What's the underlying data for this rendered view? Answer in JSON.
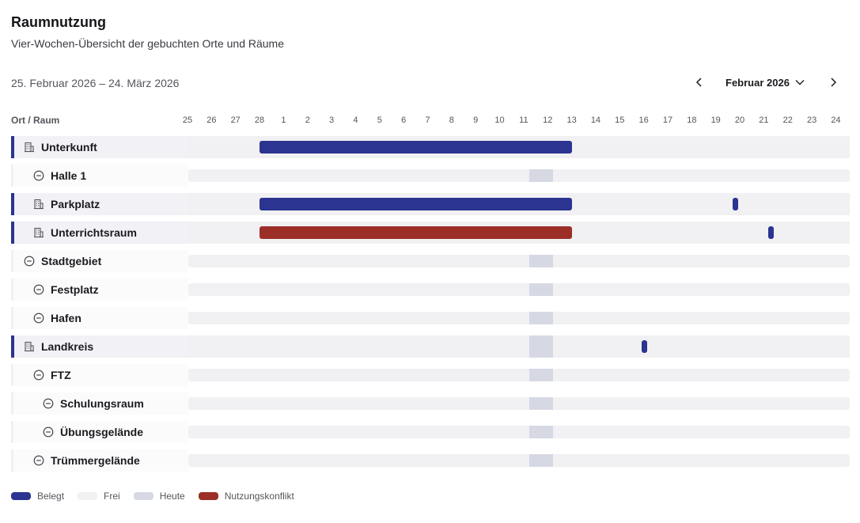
{
  "header": {
    "title": "Raumnutzung",
    "subtitle": "Vier-Wochen-Übersicht der gebuchten Orte und Räume"
  },
  "toolbar": {
    "date_range": "25. Februar 2026 – 24. März 2026",
    "month_label": "Februar 2026",
    "prev_icon": "chevron-left-icon",
    "next_icon": "chevron-right-icon",
    "month_dropdown_icon": "chevron-down-icon"
  },
  "grid": {
    "column_header": "Ort / Raum",
    "days": [
      "25",
      "26",
      "27",
      "28",
      "1",
      "2",
      "3",
      "4",
      "5",
      "6",
      "7",
      "8",
      "9",
      "10",
      "11",
      "12",
      "13",
      "14",
      "15",
      "16",
      "17",
      "18",
      "19",
      "20",
      "21",
      "22",
      "23",
      "24"
    ],
    "today_day_index": 14
  },
  "colors": {
    "belegt": "#2b3490",
    "frei": "#f1f1f3",
    "heute": "#d6d8e4",
    "konflikt": "#9b2f28"
  },
  "rows": [
    {
      "name": "Unterkunft",
      "level": 0,
      "kind": "building",
      "icon": "building-icon",
      "bookings": [
        {
          "start": 3,
          "end": 16,
          "status": "belegt"
        }
      ]
    },
    {
      "name": "Halle 1",
      "level": 1,
      "kind": "free",
      "icon": "minus-circle-icon",
      "bookings": []
    },
    {
      "name": "Parkplatz",
      "level": 1,
      "kind": "building",
      "icon": "building-icon",
      "bookings": [
        {
          "start": 3,
          "end": 16,
          "status": "belegt"
        },
        {
          "start": 22.7,
          "end": 22.9,
          "status": "belegt"
        }
      ]
    },
    {
      "name": "Unterrichtsraum",
      "level": 1,
      "kind": "building",
      "icon": "building-icon",
      "bookings": [
        {
          "start": 3,
          "end": 16,
          "status": "konflikt"
        },
        {
          "start": 24.2,
          "end": 24.4,
          "status": "belegt"
        }
      ]
    },
    {
      "name": "Stadtgebiet",
      "level": 0,
      "kind": "free",
      "icon": "minus-circle-icon",
      "bookings": []
    },
    {
      "name": "Festplatz",
      "level": 1,
      "kind": "free",
      "icon": "minus-circle-icon",
      "bookings": []
    },
    {
      "name": "Hafen",
      "level": 1,
      "kind": "free",
      "icon": "minus-circle-icon",
      "bookings": []
    },
    {
      "name": "Landkreis",
      "level": 0,
      "kind": "building",
      "icon": "building-icon",
      "bookings": [
        {
          "start": 18.9,
          "end": 19.1,
          "status": "belegt"
        }
      ]
    },
    {
      "name": "FTZ",
      "level": 1,
      "kind": "free",
      "icon": "minus-circle-icon",
      "bookings": []
    },
    {
      "name": "Schulungsraum",
      "level": 2,
      "kind": "free",
      "icon": "minus-circle-icon",
      "bookings": []
    },
    {
      "name": "Übungsgelände",
      "level": 2,
      "kind": "free",
      "icon": "minus-circle-icon",
      "bookings": []
    },
    {
      "name": "Trümmergelände",
      "level": 1,
      "kind": "free",
      "icon": "minus-circle-icon",
      "bookings": []
    }
  ],
  "legend": [
    {
      "label": "Belegt",
      "color": "#2b3490"
    },
    {
      "label": "Frei",
      "color": "#f1f1f3"
    },
    {
      "label": "Heute",
      "color": "#d6d8e4"
    },
    {
      "label": "Nutzungskonflikt",
      "color": "#9b2f28"
    }
  ]
}
